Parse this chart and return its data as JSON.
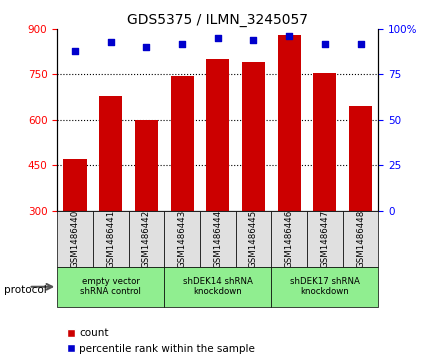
{
  "title": "GDS5375 / ILMN_3245057",
  "samples": [
    "GSM1486440",
    "GSM1486441",
    "GSM1486442",
    "GSM1486443",
    "GSM1486444",
    "GSM1486445",
    "GSM1486446",
    "GSM1486447",
    "GSM1486448"
  ],
  "counts": [
    470,
    680,
    600,
    745,
    800,
    790,
    880,
    755,
    645
  ],
  "percentiles": [
    88,
    93,
    90,
    92,
    95,
    94,
    96,
    92,
    92
  ],
  "ylim_left": [
    300,
    900
  ],
  "ylim_right": [
    0,
    100
  ],
  "yticks_left": [
    300,
    450,
    600,
    750,
    900
  ],
  "yticks_right": [
    0,
    25,
    50,
    75,
    100
  ],
  "bar_color": "#cc0000",
  "dot_color": "#0000cc",
  "protocol_groups": [
    {
      "label": "empty vector\nshRNA control",
      "start": 0,
      "end": 3,
      "color": "#90EE90"
    },
    {
      "label": "shDEK14 shRNA\nknockdown",
      "start": 3,
      "end": 6,
      "color": "#90EE90"
    },
    {
      "label": "shDEK17 shRNA\nknockdown",
      "start": 6,
      "end": 9,
      "color": "#90EE90"
    }
  ],
  "legend_count_label": "count",
  "legend_percentile_label": "percentile rank within the sample",
  "protocol_label": "protocol",
  "sample_bg_color": "#e0e0e0",
  "fig_width": 4.4,
  "fig_height": 3.63,
  "dpi": 100
}
